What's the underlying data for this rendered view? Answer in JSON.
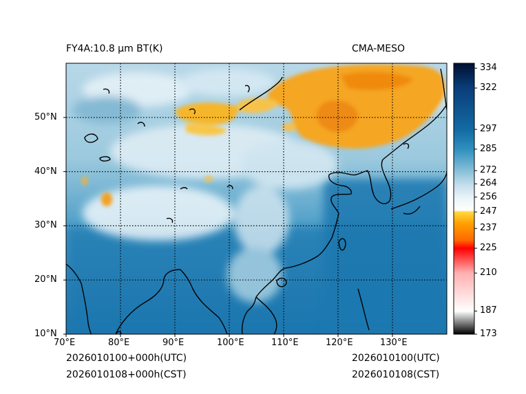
{
  "header": {
    "left_title": "FY4A:10.8 µm BT(K)",
    "right_title": "CMA-MESO"
  },
  "footer": {
    "left_line1": "2026010100+000h(UTC)",
    "left_line2": "2026010108+000h(CST)",
    "right_line1": "2026010100(UTC)",
    "right_line2": "2026010108(CST)"
  },
  "map": {
    "lon_range": [
      70,
      140
    ],
    "lat_range": [
      10,
      60
    ],
    "lon_ticks": [
      {
        "value": 70,
        "label": "70°E"
      },
      {
        "value": 80,
        "label": "80°E"
      },
      {
        "value": 90,
        "label": "90°E"
      },
      {
        "value": 100,
        "label": "100°E"
      },
      {
        "value": 110,
        "label": "110°E"
      },
      {
        "value": 120,
        "label": "120°E"
      },
      {
        "value": 130,
        "label": "130°E"
      }
    ],
    "lat_ticks": [
      {
        "value": 10,
        "label": "10°N"
      },
      {
        "value": 20,
        "label": "20°N"
      },
      {
        "value": 30,
        "label": "30°N"
      },
      {
        "value": 40,
        "label": "40°N"
      },
      {
        "value": 50,
        "label": "50°N"
      }
    ]
  },
  "colorbar": {
    "min": 173,
    "max": 337,
    "ticks": [
      334,
      322,
      297,
      285,
      272,
      264,
      256,
      247,
      237,
      225,
      210,
      187,
      173
    ],
    "stops": [
      {
        "v": 173,
        "color": "#000000"
      },
      {
        "v": 187,
        "color": "#ffffff"
      },
      {
        "v": 210,
        "color": "#ffb0b0"
      },
      {
        "v": 225,
        "color": "#ff0000"
      },
      {
        "v": 230,
        "color": "#ff6a00"
      },
      {
        "v": 240,
        "color": "#ffa000"
      },
      {
        "v": 247,
        "color": "#ffd840"
      },
      {
        "v": 248,
        "color": "#ffffff"
      },
      {
        "v": 256,
        "color": "#e8f2f8"
      },
      {
        "v": 264,
        "color": "#c0dcea"
      },
      {
        "v": 272,
        "color": "#86bfd8"
      },
      {
        "v": 285,
        "color": "#2f8fbf"
      },
      {
        "v": 297,
        "color": "#136aa3"
      },
      {
        "v": 322,
        "color": "#0a3d7a"
      },
      {
        "v": 337,
        "color": "#001030"
      }
    ]
  }
}
